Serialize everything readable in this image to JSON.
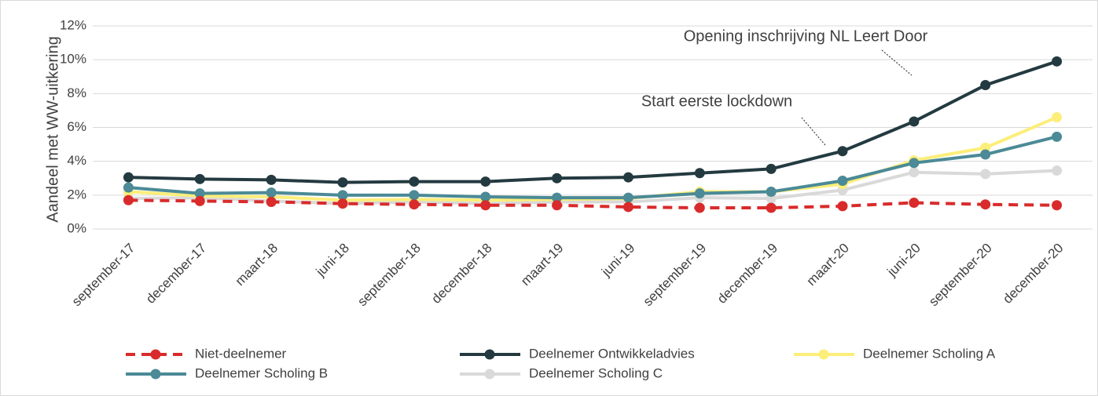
{
  "chart_data": {
    "type": "line",
    "y_label": "Aandeel met WW-uitkering",
    "categories": [
      "september-17",
      "december-17",
      "maart-18",
      "juni-18",
      "september-18",
      "december-18",
      "maart-19",
      "juni-19",
      "september-19",
      "december-19",
      "maart-20",
      "juni-20",
      "september-20",
      "december-20"
    ],
    "series": [
      {
        "name": "Niet-deelnemer",
        "color": "#d92b2b",
        "dashed": true,
        "values": [
          1.7,
          1.65,
          1.6,
          1.5,
          1.45,
          1.4,
          1.4,
          1.3,
          1.25,
          1.25,
          1.35,
          1.55,
          1.45,
          1.4
        ]
      },
      {
        "name": "Deelnemer Ontwikkeladvies",
        "color": "#233a40",
        "values": [
          3.05,
          2.95,
          2.9,
          2.75,
          2.8,
          2.8,
          3.0,
          3.05,
          3.3,
          3.55,
          4.6,
          6.35,
          8.5,
          9.9
        ]
      },
      {
        "name": "Deelnemer Scholing A",
        "color": "#fcee7a",
        "values": [
          2.2,
          1.95,
          1.9,
          1.7,
          1.75,
          1.7,
          1.75,
          1.8,
          2.2,
          2.2,
          2.65,
          4.05,
          4.8,
          6.6
        ]
      },
      {
        "name": "Deelnemer Scholing B",
        "color": "#4b8a96",
        "values": [
          2.45,
          2.1,
          2.15,
          2.0,
          2.0,
          1.9,
          1.85,
          1.85,
          2.1,
          2.2,
          2.85,
          3.9,
          4.4,
          5.45
        ]
      },
      {
        "name": "Deelnemer Scholing C",
        "color": "#d9d9d9",
        "values": [
          1.8,
          1.85,
          1.65,
          1.5,
          1.6,
          1.5,
          1.6,
          1.6,
          1.85,
          1.8,
          2.3,
          3.35,
          3.25,
          3.45
        ]
      }
    ],
    "ylim": [
      0,
      12
    ],
    "yticks": [
      {
        "value": 0,
        "label": "0%"
      },
      {
        "value": 2,
        "label": "2%"
      },
      {
        "value": 4,
        "label": "4%"
      },
      {
        "value": 6,
        "label": "6%"
      },
      {
        "value": 8,
        "label": "8%"
      },
      {
        "value": 10,
        "label": "10%"
      },
      {
        "value": 12,
        "label": "12%"
      }
    ],
    "grid": true,
    "legend": "bottom",
    "annotations": [
      {
        "text": "Opening inschrijving NL Leert Door",
        "category": "september-20"
      },
      {
        "text": "Start eerste lockdown",
        "category": "maart-20"
      }
    ]
  }
}
